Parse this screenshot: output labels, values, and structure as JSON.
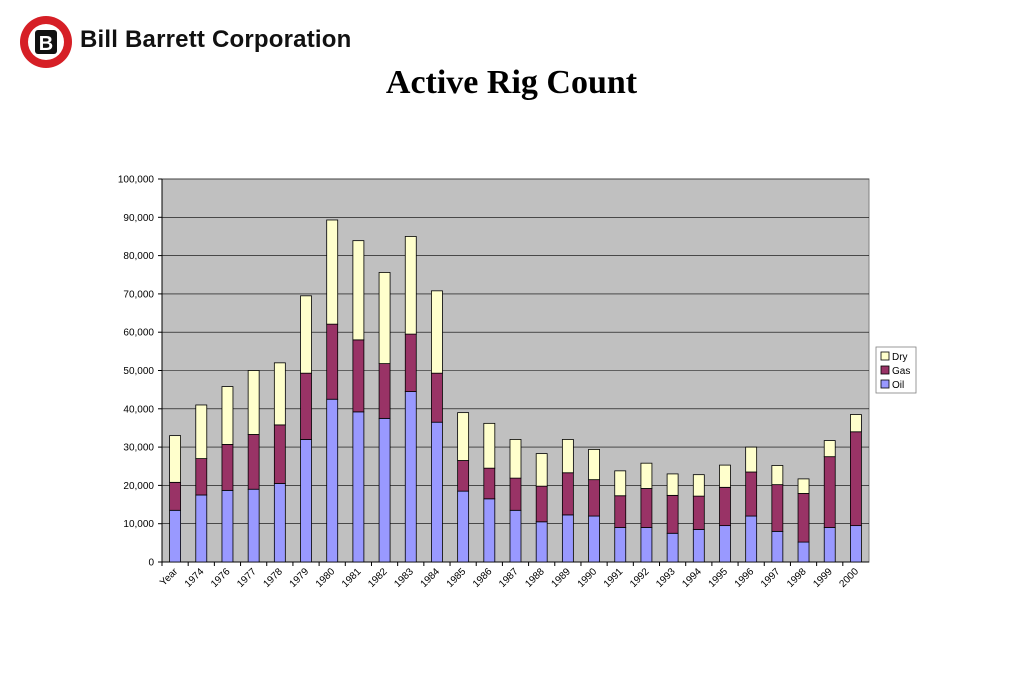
{
  "header": {
    "logo_letter": "B",
    "company": "Bill Barrett Corporation",
    "title": "Active Rig Count"
  },
  "colors": {
    "oil": "#9999ff",
    "gas": "#993366",
    "dry": "#ffffcc",
    "plot_bg": "#c0c0c0"
  },
  "chart_data": {
    "type": "bar",
    "stacked": true,
    "title": "Active Rig Count",
    "categories": [
      "Year",
      "1974",
      "1976",
      "1977",
      "1978",
      "1979",
      "1980",
      "1981",
      "1982",
      "1983",
      "1984",
      "1985",
      "1986",
      "1987",
      "1988",
      "1989",
      "1990",
      "1991",
      "1992",
      "1993",
      "1994",
      "1995",
      "1996",
      "1997",
      "1998",
      "1999",
      "2000"
    ],
    "series": [
      {
        "name": "Oil",
        "color": "#9999ff",
        "values": [
          13500,
          17500,
          18700,
          19000,
          20500,
          32000,
          42500,
          39200,
          37500,
          44500,
          36500,
          18500,
          16500,
          13500,
          10500,
          12300,
          12000,
          9000,
          9000,
          7500,
          8500,
          9500,
          12000,
          8000,
          5200,
          9000,
          9500
        ]
      },
      {
        "name": "Gas",
        "color": "#993366",
        "values": [
          7300,
          9500,
          12000,
          14300,
          15300,
          17300,
          19600,
          18800,
          14300,
          15000,
          12800,
          8000,
          8000,
          8400,
          9300,
          11000,
          9500,
          8300,
          10200,
          9900,
          8700,
          10000,
          11500,
          12200,
          12700,
          18500,
          24500
        ]
      },
      {
        "name": "Dry",
        "color": "#ffffcc",
        "values": [
          12200,
          14000,
          15100,
          16700,
          16200,
          20200,
          27200,
          25900,
          23800,
          25500,
          21500,
          12500,
          11700,
          10100,
          8500,
          8700,
          7900,
          6500,
          6600,
          5600,
          5600,
          5800,
          6500,
          5000,
          3800,
          4200,
          4500
        ]
      }
    ],
    "yticks": [
      "0",
      "10,000",
      "20,000",
      "30,000",
      "40,000",
      "50,000",
      "60,000",
      "70,000",
      "80,000",
      "90,000",
      "100,000"
    ],
    "ylim": [
      0,
      100000
    ],
    "grid": true,
    "legend": {
      "position": "right",
      "order": [
        "Dry",
        "Gas",
        "Oil"
      ]
    }
  }
}
